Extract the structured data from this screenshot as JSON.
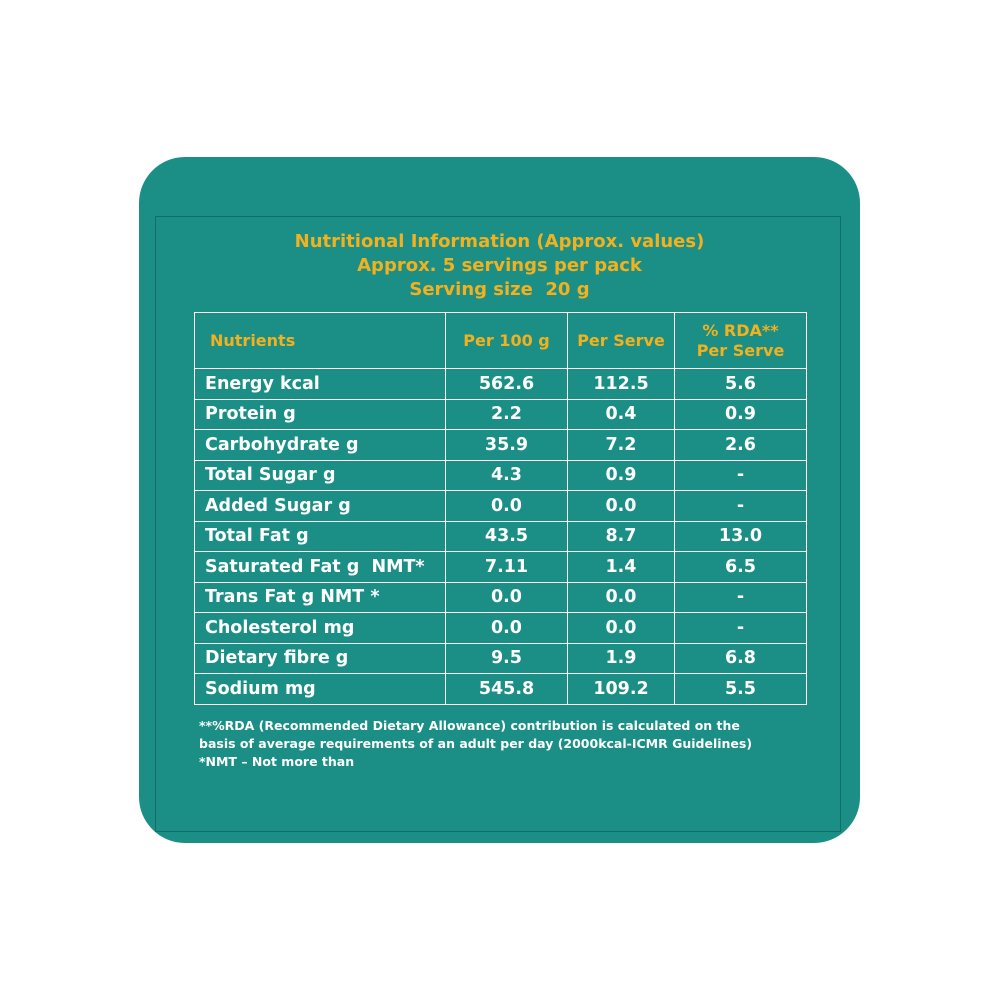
{
  "header": {
    "title": "Nutritional Information (Approx. values)",
    "servings": "Approx. 5 servings per pack",
    "serving_size": "Serving size  20 g"
  },
  "table": {
    "columns": [
      "Nutrients",
      "Per 100 g",
      "Per Serve",
      "% RDA**",
      "Per Serve"
    ],
    "rows": [
      {
        "nutrient": "Energy kcal",
        "per100": "562.6",
        "perServe": "112.5",
        "rda": "5.6"
      },
      {
        "nutrient": "Protein g",
        "per100": "2.2",
        "perServe": "0.4",
        "rda": "0.9"
      },
      {
        "nutrient": "Carbohydrate g",
        "per100": "35.9",
        "perServe": "7.2",
        "rda": "2.6"
      },
      {
        "nutrient": "Total Sugar g",
        "per100": "4.3",
        "perServe": "0.9",
        "rda": "-"
      },
      {
        "nutrient": "Added Sugar g",
        "per100": "0.0",
        "perServe": "0.0",
        "rda": "-"
      },
      {
        "nutrient": "Total Fat g",
        "per100": "43.5",
        "perServe": "8.7",
        "rda": "13.0"
      },
      {
        "nutrient": "Saturated Fat g  NMT*",
        "per100": "7.11",
        "perServe": "1.4",
        "rda": "6.5"
      },
      {
        "nutrient": "Trans Fat g NMT *",
        "per100": "0.0",
        "perServe": "0.0",
        "rda": "-"
      },
      {
        "nutrient": "Cholesterol mg",
        "per100": "0.0",
        "perServe": "0.0",
        "rda": "-"
      },
      {
        "nutrient": "Dietary fibre g",
        "per100": "9.5",
        "perServe": "1.9",
        "rda": "6.8"
      },
      {
        "nutrient": "Sodium mg",
        "per100": "545.8",
        "perServe": "109.2",
        "rda": "5.5"
      }
    ]
  },
  "footnotes": [
    "**%RDA (Recommended Dietary Allowance) contribution is calculated on the",
    "basis of average requirements of an adult per day (2000kcal-ICMR Guidelines)",
    "*NMT – Not more than"
  ],
  "colors": {
    "card": "#1b8f86",
    "accent": "#f2b11e",
    "text": "#ffffff"
  }
}
